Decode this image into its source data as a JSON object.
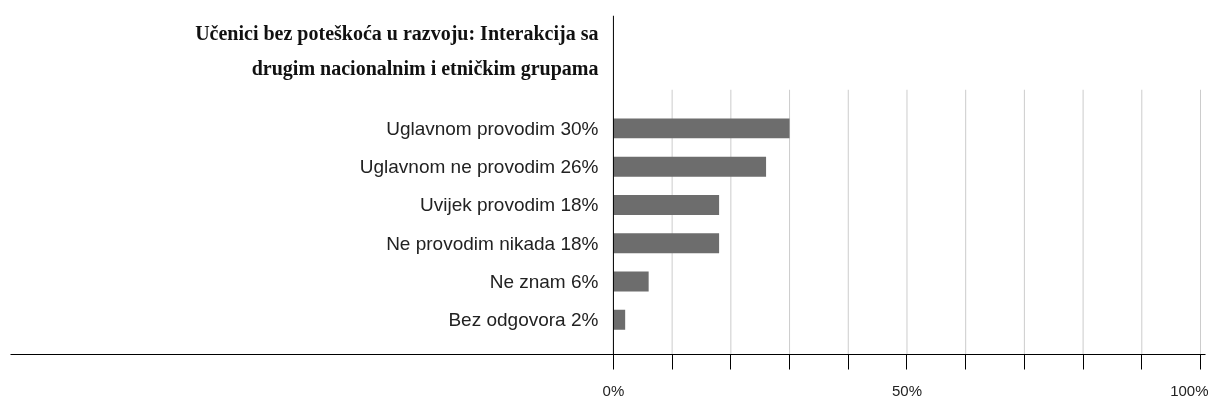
{
  "chart_data": {
    "type": "bar",
    "orientation": "horizontal",
    "title": "Učenici bez poteškoća u razvoju: Interakcija sa drugim nacionalnim i etničkim grupama",
    "categories": [
      "Uglavnom provodim 30%",
      "Uglavnom ne provodim 26%",
      "Uvijek provodim 18%",
      "Ne provodim nikada 18%",
      "Ne znam 6%",
      "Bez odgovora 2%"
    ],
    "values": [
      30,
      26,
      18,
      18,
      6,
      2
    ],
    "color": "#6d6d6d",
    "xlim": [
      -102.7,
      100.85
    ],
    "xticks": [
      {
        "value": 0,
        "label": "0%"
      },
      {
        "value": 10,
        "label": null
      },
      {
        "value": 20,
        "label": null
      },
      {
        "value": 30,
        "label": null
      },
      {
        "value": 40,
        "label": null
      },
      {
        "value": 50,
        "label": "50%"
      },
      {
        "value": 60,
        "label": null
      },
      {
        "value": 70,
        "label": null
      },
      {
        "value": 80,
        "label": null
      },
      {
        "value": 90,
        "label": null
      },
      {
        "value": 100,
        "label": "100%"
      }
    ],
    "grid": "x"
  }
}
